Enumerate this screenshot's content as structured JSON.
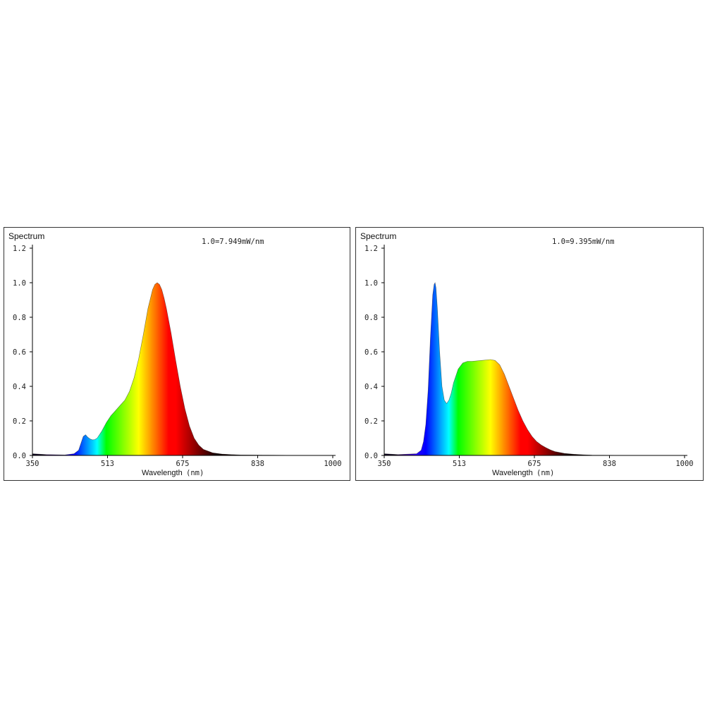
{
  "chart_data": [
    {
      "type": "area",
      "title": "Spectrum",
      "annotation": "1.0=7.949mW/nm",
      "xlabel": "Wavelength",
      "xunit": "(nm)",
      "xlim": [
        350,
        1000
      ],
      "ylim": [
        0,
        1.2
      ],
      "xticks": [
        "350",
        "513",
        "675",
        "838",
        "1000"
      ],
      "yticks": [
        "0.0",
        "0.2",
        "0.4",
        "0.6",
        "0.8",
        "1.0",
        "1.2"
      ],
      "x": [
        350,
        380,
        420,
        440,
        450,
        455,
        460,
        465,
        470,
        475,
        480,
        485,
        490,
        500,
        510,
        520,
        530,
        540,
        550,
        560,
        570,
        580,
        590,
        600,
        610,
        615,
        620,
        625,
        630,
        635,
        640,
        650,
        660,
        670,
        680,
        690,
        700,
        710,
        720,
        740,
        760,
        780,
        800,
        850,
        900,
        950,
        1000
      ],
      "y": [
        0.01,
        0.005,
        0.003,
        0.01,
        0.03,
        0.07,
        0.11,
        0.12,
        0.105,
        0.095,
        0.09,
        0.092,
        0.1,
        0.14,
        0.19,
        0.23,
        0.26,
        0.29,
        0.32,
        0.37,
        0.45,
        0.56,
        0.7,
        0.85,
        0.96,
        0.99,
        1.0,
        0.99,
        0.96,
        0.91,
        0.85,
        0.71,
        0.55,
        0.4,
        0.27,
        0.17,
        0.1,
        0.06,
        0.035,
        0.015,
        0.008,
        0.005,
        0.003,
        0.002,
        0.001,
        0.001,
        0.0
      ]
    },
    {
      "type": "area",
      "title": "Spectrum",
      "annotation": "1.0=9.395mW/nm",
      "xlabel": "Wavelength",
      "xunit": "(nm)",
      "xlim": [
        350,
        1000
      ],
      "ylim": [
        0,
        1.2
      ],
      "xticks": [
        "350",
        "513",
        "675",
        "838",
        "1000"
      ],
      "yticks": [
        "0.0",
        "0.2",
        "0.4",
        "0.6",
        "0.8",
        "1.0",
        "1.2"
      ],
      "x": [
        350,
        380,
        420,
        430,
        435,
        440,
        445,
        450,
        455,
        458,
        460,
        462,
        465,
        470,
        475,
        480,
        485,
        490,
        495,
        500,
        510,
        520,
        530,
        540,
        560,
        580,
        590,
        600,
        610,
        620,
        630,
        640,
        650,
        660,
        670,
        680,
        690,
        700,
        710,
        720,
        740,
        760,
        780,
        800,
        850,
        900,
        1000
      ],
      "y": [
        0.01,
        0.005,
        0.01,
        0.03,
        0.08,
        0.18,
        0.38,
        0.68,
        0.93,
        0.99,
        1.0,
        0.97,
        0.85,
        0.6,
        0.4,
        0.32,
        0.3,
        0.32,
        0.36,
        0.42,
        0.5,
        0.535,
        0.545,
        0.545,
        0.55,
        0.555,
        0.55,
        0.525,
        0.47,
        0.4,
        0.33,
        0.26,
        0.2,
        0.15,
        0.11,
        0.08,
        0.06,
        0.045,
        0.032,
        0.022,
        0.012,
        0.007,
        0.004,
        0.002,
        0.001,
        0.001,
        0.0
      ]
    }
  ]
}
